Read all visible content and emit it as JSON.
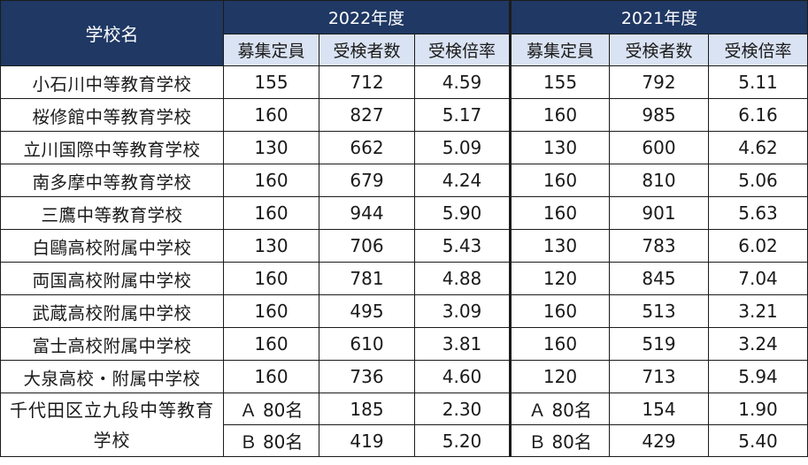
{
  "header": {
    "school_col": "学校名",
    "years": [
      "2022年度",
      "2021年度"
    ],
    "subcols": [
      "募集定員",
      "受検者数",
      "受検倍率",
      "募集定員",
      "受検者数",
      "受検倍率"
    ]
  },
  "rows": [
    {
      "name": "小石川中等教育学校",
      "cells": [
        "155",
        "712",
        "4.59",
        "155",
        "792",
        "5.11"
      ]
    },
    {
      "name": "桜修館中等教育学校",
      "cells": [
        "160",
        "827",
        "5.17",
        "160",
        "985",
        "6.16"
      ]
    },
    {
      "name": "立川国際中等教育学校",
      "cells": [
        "130",
        "662",
        "5.09",
        "130",
        "600",
        "4.62"
      ]
    },
    {
      "name": "南多摩中等教育学校",
      "cells": [
        "160",
        "679",
        "4.24",
        "160",
        "810",
        "5.06"
      ]
    },
    {
      "name": "三鷹中等教育学校",
      "cells": [
        "160",
        "944",
        "5.90",
        "160",
        "901",
        "5.63"
      ]
    },
    {
      "name": "白鷗高校附属中学校",
      "cells": [
        "130",
        "706",
        "5.43",
        "130",
        "783",
        "6.02"
      ]
    },
    {
      "name": "両国高校附属中学校",
      "cells": [
        "160",
        "781",
        "4.88",
        "120",
        "845",
        "7.04"
      ]
    },
    {
      "name": "武蔵高校附属中学校",
      "cells": [
        "160",
        "495",
        "3.09",
        "160",
        "513",
        "3.21"
      ]
    },
    {
      "name": "富士高校附属中学校",
      "cells": [
        "160",
        "610",
        "3.81",
        "160",
        "519",
        "3.24"
      ]
    },
    {
      "name": "大泉高校・附属中学校",
      "cells": [
        "160",
        "736",
        "4.60",
        "120",
        "713",
        "5.94"
      ]
    }
  ],
  "last": {
    "name": "千代田区立九段中等教育学校",
    "a": [
      "Ａ 80名",
      "185",
      "2.30",
      "Ａ 80名",
      "154",
      "1.90"
    ],
    "b": [
      "Ｂ 80名",
      "419",
      "5.20",
      "Ｂ 80名",
      "429",
      "5.40"
    ]
  }
}
